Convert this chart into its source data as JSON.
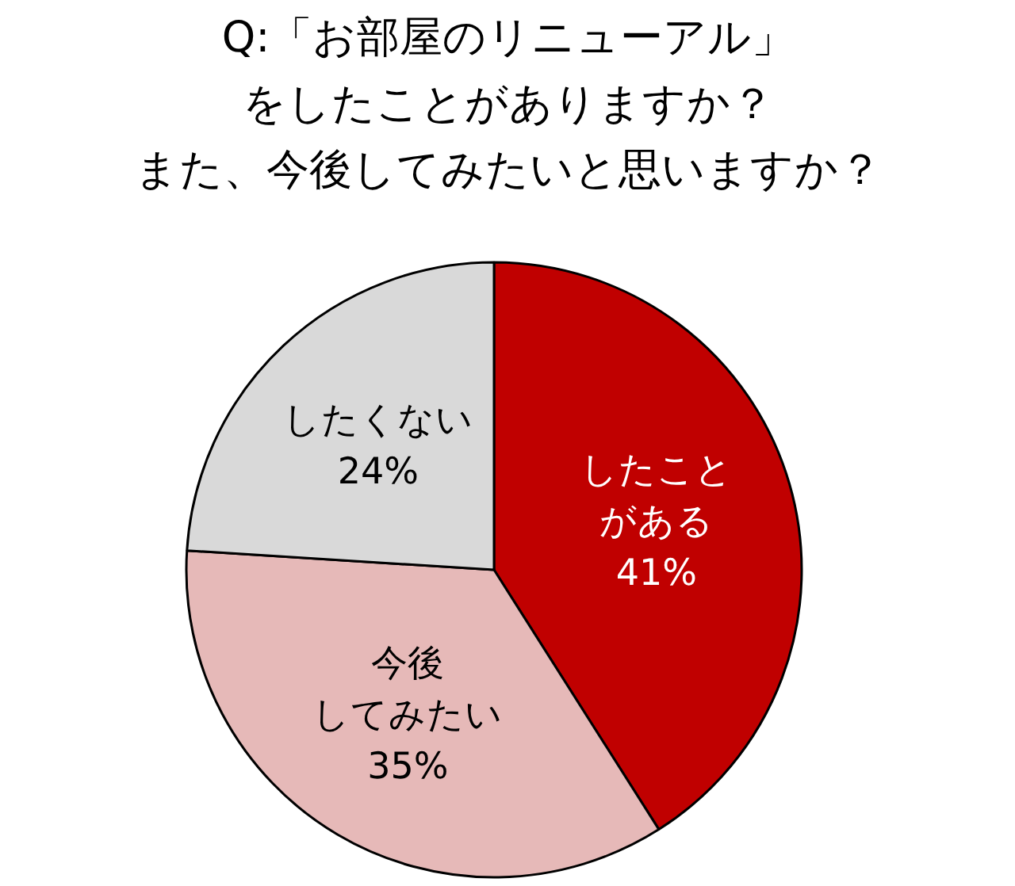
{
  "chart_data": {
    "type": "pie",
    "title": "Q:「お部屋のリニューアル」をしたことがありますか？また、今後してみたいと思いますか？",
    "categories": [
      "したことがある",
      "今後してみたい",
      "したくない"
    ],
    "values": [
      41,
      35,
      24
    ],
    "colors": [
      "#c00000",
      "#e6b9b8",
      "#d9d9d9"
    ],
    "value_labels": [
      "41%",
      "35%",
      "24%"
    ]
  }
}
